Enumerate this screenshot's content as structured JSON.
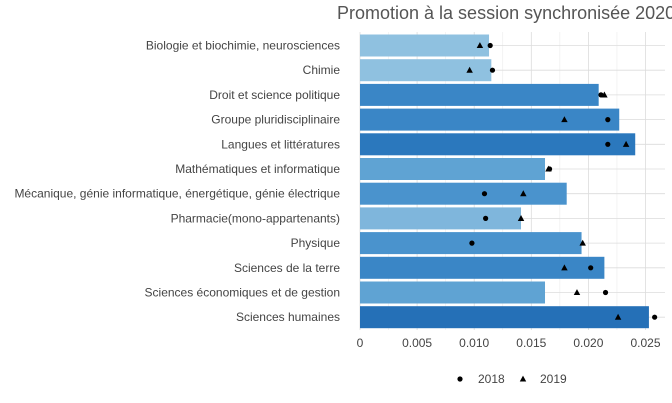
{
  "chart_data": {
    "type": "bar",
    "orientation": "horizontal",
    "title": "Promotion à la session synchronisée 2020",
    "xlabel": "",
    "ylabel": "",
    "xlim": [
      0,
      0.027
    ],
    "xticks": [
      "0",
      "0.005",
      "0.010",
      "0.015",
      "0.020",
      "0.025"
    ],
    "xtick_values": [
      0,
      0.005,
      0.01,
      0.015,
      0.02,
      0.025
    ],
    "grid": true,
    "legend_position": "bottom",
    "categories": [
      "Biologie et biochimie, neurosciences",
      "Chimie",
      "Droit et science politique",
      "Groupe pluridisciplinaire",
      "Langues et littératures",
      "Mathématiques et informatique",
      "Mécanique, génie informatique, énergétique, génie électrique",
      "Pharmacie(mono-appartenants)",
      "Physique",
      "Sciences de la terre",
      "Sciences économiques et de gestion",
      "Sciences humaines"
    ],
    "values": [
      0.0113,
      0.0115,
      0.0209,
      0.0227,
      0.0241,
      0.0162,
      0.0181,
      0.0141,
      0.0194,
      0.0214,
      0.0162,
      0.0253
    ],
    "bar_colors": [
      "#8fc1e0",
      "#8fc1e0",
      "#3a86c6",
      "#3a86c6",
      "#2b78bd",
      "#5fa3d3",
      "#4a93cd",
      "#7fb6dc",
      "#4a93cd",
      "#3a86c6",
      "#5fa3d3",
      "#2570b7"
    ],
    "series": [
      {
        "name": "2018",
        "marker": "circle",
        "values": [
          0.0114,
          0.0116,
          0.0211,
          0.0217,
          0.0217,
          0.0166,
          0.0109,
          0.011,
          0.0098,
          0.0202,
          0.0215,
          0.0258
        ]
      },
      {
        "name": "2019",
        "marker": "triangle",
        "values": [
          0.0105,
          0.0096,
          0.0214,
          0.0179,
          0.0233,
          0.0165,
          0.0143,
          0.0141,
          0.0195,
          0.0179,
          0.019,
          0.0226
        ]
      }
    ]
  }
}
